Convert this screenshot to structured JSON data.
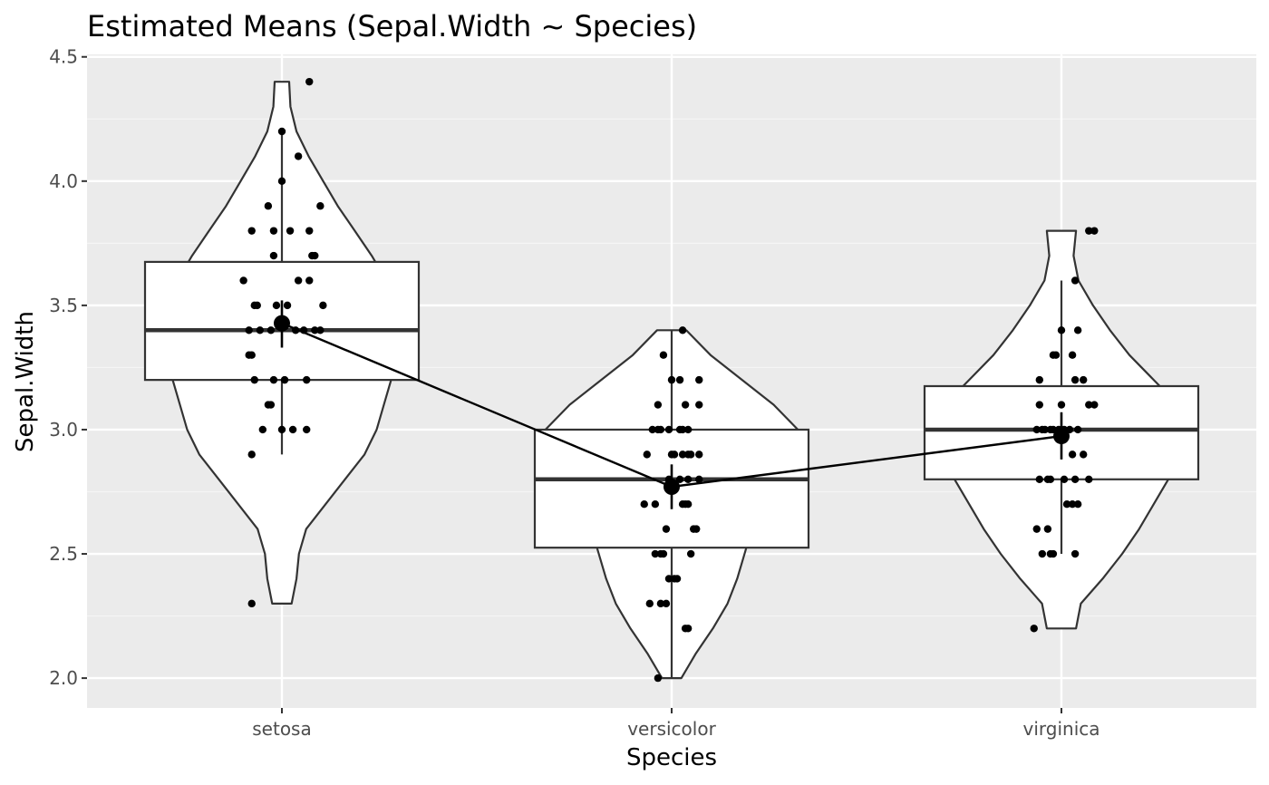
{
  "chart_data": {
    "type": "violin-box-jitter",
    "title": "Estimated Means (Sepal.Width ~ Species)",
    "xlabel": "Species",
    "ylabel": "Sepal.Width",
    "categories": [
      "setosa",
      "versicolor",
      "virginica"
    ],
    "ylim": [
      1.88,
      4.51
    ],
    "y_ticks": [
      2.0,
      2.5,
      3.0,
      3.5,
      4.0,
      4.5
    ],
    "y_tick_labels": [
      "2.0",
      "2.5",
      "3.0",
      "3.5",
      "4.0",
      "4.5"
    ],
    "grid": true,
    "legend": "none",
    "colors": {
      "panel_background": "#ebebeb",
      "grid_major": "#ffffff",
      "grid_minor": "#f5f5f5",
      "outline": "#333333",
      "violin_fill": "#ffffff",
      "box_fill": "#ffffff",
      "point": "#000000",
      "mean_line": "#000000"
    },
    "groups": [
      {
        "name": "setosa",
        "box": {
          "q1": 3.2,
          "median": 3.4,
          "q3": 3.675,
          "whisker_low": 2.9,
          "whisker_high": 4.2
        },
        "mean": 3.428,
        "ci": [
          3.33,
          3.52
        ],
        "violin": {
          "min": 2.3,
          "max": 4.4,
          "profile": [
            [
              2.3,
              0.04
            ],
            [
              2.4,
              0.06
            ],
            [
              2.5,
              0.07
            ],
            [
              2.6,
              0.1
            ],
            [
              2.7,
              0.18
            ],
            [
              2.8,
              0.26
            ],
            [
              2.9,
              0.34
            ],
            [
              3.0,
              0.39
            ],
            [
              3.1,
              0.42
            ],
            [
              3.2,
              0.45
            ],
            [
              3.3,
              0.47
            ],
            [
              3.4,
              0.48
            ],
            [
              3.5,
              0.46
            ],
            [
              3.6,
              0.43
            ],
            [
              3.7,
              0.37
            ],
            [
              3.8,
              0.3
            ],
            [
              3.9,
              0.23
            ],
            [
              4.0,
              0.17
            ],
            [
              4.1,
              0.11
            ],
            [
              4.2,
              0.06
            ],
            [
              4.3,
              0.035
            ],
            [
              4.4,
              0.03
            ]
          ]
        },
        "points": [
          [
            -0.11,
            2.3
          ],
          [
            -0.11,
            2.9
          ],
          [
            -0.14,
            3.6
          ],
          [
            -0.07,
            3.0
          ],
          [
            0.0,
            3.0
          ],
          [
            0.04,
            3.0
          ],
          [
            0.09,
            3.0
          ],
          [
            -0.05,
            3.1
          ],
          [
            -0.04,
            3.1
          ],
          [
            -0.1,
            3.2
          ],
          [
            -0.03,
            3.2
          ],
          [
            0.01,
            3.2
          ],
          [
            0.09,
            3.2
          ],
          [
            -0.12,
            3.3
          ],
          [
            -0.11,
            3.3
          ],
          [
            -0.12,
            3.4
          ],
          [
            -0.08,
            3.4
          ],
          [
            -0.04,
            3.4
          ],
          [
            0.05,
            3.4
          ],
          [
            0.08,
            3.4
          ],
          [
            0.12,
            3.4
          ],
          [
            0.14,
            3.4
          ],
          [
            -0.1,
            3.5
          ],
          [
            -0.09,
            3.5
          ],
          [
            -0.02,
            3.5
          ],
          [
            0.02,
            3.5
          ],
          [
            0.15,
            3.5
          ],
          [
            0.06,
            3.6
          ],
          [
            0.1,
            3.6
          ],
          [
            -0.03,
            3.7
          ],
          [
            0.11,
            3.7
          ],
          [
            0.12,
            3.7
          ],
          [
            -0.11,
            3.8
          ],
          [
            -0.03,
            3.8
          ],
          [
            0.03,
            3.8
          ],
          [
            0.1,
            3.8
          ],
          [
            -0.05,
            3.9
          ],
          [
            0.14,
            3.9
          ],
          [
            0.0,
            4.0
          ],
          [
            0.06,
            4.1
          ],
          [
            0.0,
            4.2
          ],
          [
            0.1,
            4.4
          ]
        ]
      },
      {
        "name": "versicolor",
        "box": {
          "q1": 2.525,
          "median": 2.8,
          "q3": 3.0,
          "whisker_low": 2.0,
          "whisker_high": 3.4
        },
        "mean": 2.77,
        "ci": [
          2.68,
          2.86
        ],
        "violin": {
          "min": 2.0,
          "max": 3.4,
          "profile": [
            [
              2.0,
              0.04
            ],
            [
              2.1,
              0.1
            ],
            [
              2.2,
              0.17
            ],
            [
              2.3,
              0.23
            ],
            [
              2.4,
              0.27
            ],
            [
              2.5,
              0.3
            ],
            [
              2.6,
              0.33
            ],
            [
              2.7,
              0.4
            ],
            [
              2.8,
              0.5
            ],
            [
              2.9,
              0.56
            ],
            [
              3.0,
              0.52
            ],
            [
              3.1,
              0.42
            ],
            [
              3.2,
              0.29
            ],
            [
              3.3,
              0.16
            ],
            [
              3.4,
              0.06
            ]
          ]
        },
        "points": [
          [
            -0.05,
            2.0
          ],
          [
            0.05,
            2.2
          ],
          [
            0.06,
            2.2
          ],
          [
            -0.08,
            2.3
          ],
          [
            -0.04,
            2.3
          ],
          [
            -0.02,
            2.3
          ],
          [
            -0.01,
            2.4
          ],
          [
            0.01,
            2.4
          ],
          [
            0.02,
            2.4
          ],
          [
            -0.06,
            2.5
          ],
          [
            -0.04,
            2.5
          ],
          [
            -0.03,
            2.5
          ],
          [
            0.07,
            2.5
          ],
          [
            -0.02,
            2.6
          ],
          [
            0.08,
            2.6
          ],
          [
            0.09,
            2.6
          ],
          [
            -0.1,
            2.7
          ],
          [
            -0.06,
            2.7
          ],
          [
            0.04,
            2.7
          ],
          [
            0.05,
            2.7
          ],
          [
            0.06,
            2.7
          ],
          [
            -0.01,
            2.8
          ],
          [
            0.03,
            2.8
          ],
          [
            0.06,
            2.8
          ],
          [
            0.1,
            2.8
          ],
          [
            -0.09,
            2.9
          ],
          [
            0.0,
            2.9
          ],
          [
            0.01,
            2.9
          ],
          [
            0.04,
            2.9
          ],
          [
            0.06,
            2.9
          ],
          [
            0.07,
            2.9
          ],
          [
            0.1,
            2.9
          ],
          [
            -0.07,
            3.0
          ],
          [
            -0.05,
            3.0
          ],
          [
            -0.04,
            3.0
          ],
          [
            -0.01,
            3.0
          ],
          [
            0.03,
            3.0
          ],
          [
            0.04,
            3.0
          ],
          [
            0.06,
            3.0
          ],
          [
            -0.05,
            3.1
          ],
          [
            0.05,
            3.1
          ],
          [
            0.1,
            3.1
          ],
          [
            0.0,
            3.2
          ],
          [
            0.03,
            3.2
          ],
          [
            0.1,
            3.2
          ],
          [
            -0.03,
            3.3
          ],
          [
            0.04,
            3.4
          ]
        ]
      },
      {
        "name": "virginica",
        "box": {
          "q1": 2.8,
          "median": 3.0,
          "q3": 3.175,
          "whisker_low": 2.5,
          "whisker_high": 3.6
        },
        "mean": 2.974,
        "ci": [
          2.88,
          3.07
        ],
        "violin": {
          "min": 2.2,
          "max": 3.8,
          "profile": [
            [
              2.2,
              0.06
            ],
            [
              2.3,
              0.08
            ],
            [
              2.4,
              0.17
            ],
            [
              2.5,
              0.25
            ],
            [
              2.6,
              0.32
            ],
            [
              2.7,
              0.38
            ],
            [
              2.8,
              0.44
            ],
            [
              2.9,
              0.5
            ],
            [
              3.0,
              0.53
            ],
            [
              3.1,
              0.48
            ],
            [
              3.2,
              0.38
            ],
            [
              3.3,
              0.28
            ],
            [
              3.4,
              0.2
            ],
            [
              3.5,
              0.13
            ],
            [
              3.6,
              0.07
            ],
            [
              3.7,
              0.05
            ],
            [
              3.8,
              0.06
            ]
          ]
        },
        "points": [
          [
            -0.1,
            2.2
          ],
          [
            -0.07,
            2.5
          ],
          [
            -0.04,
            2.5
          ],
          [
            -0.03,
            2.5
          ],
          [
            0.05,
            2.5
          ],
          [
            -0.05,
            2.6
          ],
          [
            -0.09,
            2.6
          ],
          [
            0.02,
            2.7
          ],
          [
            0.04,
            2.7
          ],
          [
            0.06,
            2.7
          ],
          [
            -0.08,
            2.8
          ],
          [
            -0.05,
            2.8
          ],
          [
            -0.04,
            2.8
          ],
          [
            0.01,
            2.8
          ],
          [
            0.05,
            2.8
          ],
          [
            0.1,
            2.8
          ],
          [
            0.04,
            2.9
          ],
          [
            0.08,
            2.9
          ],
          [
            -0.09,
            3.0
          ],
          [
            -0.07,
            3.0
          ],
          [
            -0.06,
            3.0
          ],
          [
            -0.04,
            3.0
          ],
          [
            -0.03,
            3.0
          ],
          [
            -0.01,
            3.0
          ],
          [
            0.01,
            3.0
          ],
          [
            0.03,
            3.0
          ],
          [
            0.06,
            3.0
          ],
          [
            -0.08,
            3.1
          ],
          [
            0.0,
            3.1
          ],
          [
            0.1,
            3.1
          ],
          [
            0.12,
            3.1
          ],
          [
            -0.08,
            3.2
          ],
          [
            0.05,
            3.2
          ],
          [
            0.08,
            3.2
          ],
          [
            -0.03,
            3.3
          ],
          [
            -0.02,
            3.3
          ],
          [
            0.04,
            3.3
          ],
          [
            0.0,
            3.4
          ],
          [
            0.06,
            3.4
          ],
          [
            0.05,
            3.6
          ],
          [
            0.1,
            3.8
          ],
          [
            0.12,
            3.8
          ]
        ]
      }
    ]
  }
}
